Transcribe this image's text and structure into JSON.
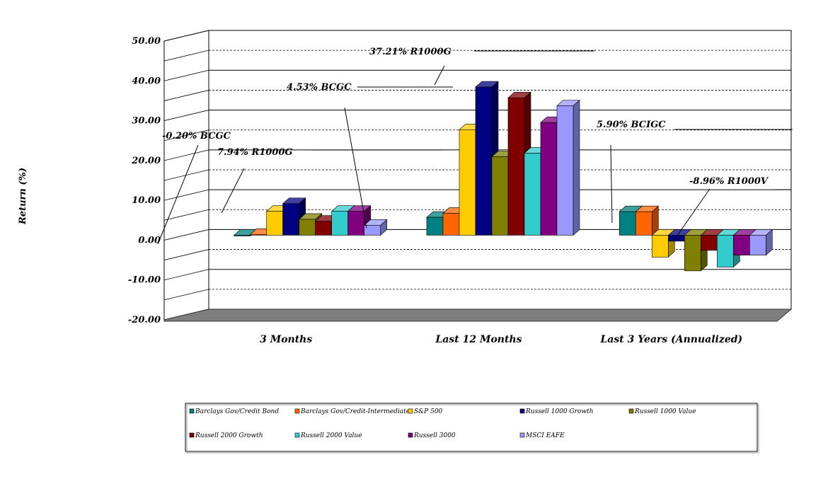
{
  "chart_data": {
    "type": "bar",
    "ylabel": "Return (%)",
    "xlabel": "",
    "ylim": [
      -20,
      50
    ],
    "yticks": [
      "50.00",
      "40.00",
      "30.00",
      "20.00",
      "10.00",
      "0.00",
      "-10.00",
      "-20.00"
    ],
    "categories": [
      "3 Months",
      "Last 12 Months",
      "Last 3 Years (Annualized)"
    ],
    "series": [
      {
        "name": "Barclays Gov/Credit Bond",
        "color": "#008080",
        "values": [
          -0.2,
          4.5,
          5.9
        ]
      },
      {
        "name": "Barclays Gov/Credit-Intermediate",
        "color": "#FF6600",
        "values": [
          0.2,
          5.5,
          5.9
        ]
      },
      {
        "name": "S&P 500",
        "color": "#FFCC00",
        "values": [
          6.0,
          26.5,
          -5.5
        ]
      },
      {
        "name": "Russell 1000 Growth",
        "color": "#000080",
        "values": [
          7.94,
          37.21,
          -1.5
        ]
      },
      {
        "name": "Russell 1000 Value",
        "color": "#808000",
        "values": [
          4.0,
          19.7,
          -8.96
        ]
      },
      {
        "name": "Russell 2000 Growth",
        "color": "#800000",
        "values": [
          3.5,
          34.5,
          -3.8
        ]
      },
      {
        "name": "Russell 2000 Value",
        "color": "#33CCCC",
        "values": [
          6.0,
          20.6,
          -8.0
        ]
      },
      {
        "name": "Russell 3000",
        "color": "#800080",
        "values": [
          6.0,
          28.3,
          -5.0
        ]
      },
      {
        "name": "MSCI EAFE",
        "color": "#9999FF",
        "values": [
          2.5,
          32.5,
          -5.0
        ]
      }
    ],
    "annotations": [
      {
        "text": "-0.20% BCGC"
      },
      {
        "text": "7.94% R1000G"
      },
      {
        "text": "4.53% BCGC"
      },
      {
        "text": "37.21% R1000G"
      },
      {
        "text": "5.90% BCIGC"
      },
      {
        "text": "-8.96% R1000V"
      }
    ],
    "grid": true,
    "legend": "bottom"
  }
}
